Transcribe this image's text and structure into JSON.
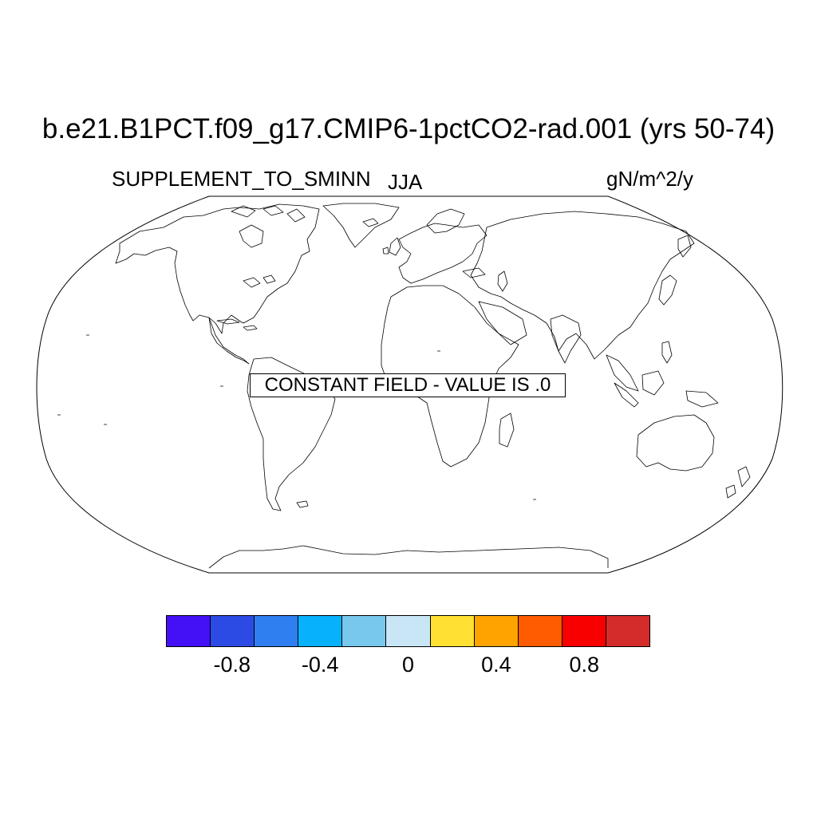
{
  "map": {
    "title": "b.e21.B1PCT.f09_g17.CMIP6-1pctCO2-rad.001 (yrs 50-74)",
    "variable": "SUPPLEMENT_TO_SMINN",
    "season": "JJA",
    "units": "gN/m^2/y",
    "annotation": "CONSTANT FIELD - VALUE IS .0",
    "projection": "Robinson",
    "coastline_color": "#000000"
  },
  "colorbar": {
    "colors": [
      "#4410f5",
      "#2c4be5",
      "#2f7ff0",
      "#08b1fb",
      "#78c8ee",
      "#c9e6f6",
      "#ffe033",
      "#ffa300",
      "#ff5b00",
      "#f90000",
      "#d42b2b"
    ],
    "tick_labels": [
      {
        "label": "-0.8",
        "value": -0.8
      },
      {
        "label": "-0.4",
        "value": -0.4
      },
      {
        "label": "0",
        "value": 0
      },
      {
        "label": "0.4",
        "value": 0.4
      },
      {
        "label": "0.8",
        "value": 0.8
      }
    ],
    "range": [
      -1.1,
      1.1
    ]
  }
}
